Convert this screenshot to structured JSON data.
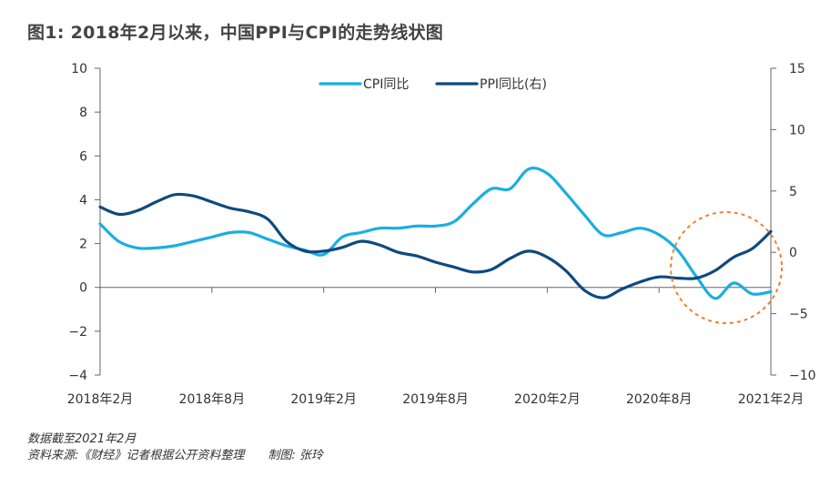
{
  "title": "图1: 2018年2月以来，中国PPI与CPI的走势线状图",
  "footnotes": {
    "line1": "数据截至2021年2月",
    "line2": "资料来源:《财经》记者根据公开资料整理　　制图: 张玲"
  },
  "chart_data": {
    "type": "line",
    "title": "图1: 2018年2月以来，中国PPI与CPI的走势线状图",
    "x": [
      "2018-02",
      "2018-03",
      "2018-04",
      "2018-05",
      "2018-06",
      "2018-07",
      "2018-08",
      "2018-09",
      "2018-10",
      "2018-11",
      "2018-12",
      "2019-01",
      "2019-02",
      "2019-03",
      "2019-04",
      "2019-05",
      "2019-06",
      "2019-07",
      "2019-08",
      "2019-09",
      "2019-10",
      "2019-11",
      "2019-12",
      "2020-01",
      "2020-02",
      "2020-03",
      "2020-04",
      "2020-05",
      "2020-06",
      "2020-07",
      "2020-08",
      "2020-09",
      "2020-10",
      "2020-11",
      "2020-12",
      "2021-01",
      "2021-02"
    ],
    "x_tick_labels": [
      "2018年2月",
      "2018年8月",
      "2019年2月",
      "2019年8月",
      "2020年2月",
      "2020年8月",
      "2021年2月"
    ],
    "y_left": {
      "label": "",
      "lim": [
        -4,
        10
      ],
      "ticks": [
        "10",
        "8",
        "6",
        "4",
        "2",
        "0",
        "−2",
        "−4"
      ]
    },
    "y_right": {
      "label": "",
      "lim": [
        -10,
        15
      ],
      "ticks": [
        "15",
        "10",
        "5",
        "0",
        "−5",
        "−10"
      ]
    },
    "series": [
      {
        "name": "CPI同比",
        "axis": "left",
        "color": "#1BAEE0",
        "values": [
          2.9,
          2.1,
          1.8,
          1.8,
          1.9,
          2.1,
          2.3,
          2.5,
          2.5,
          2.2,
          1.9,
          1.7,
          1.5,
          2.3,
          2.5,
          2.7,
          2.7,
          2.8,
          2.8,
          3.0,
          3.8,
          4.5,
          4.5,
          5.4,
          5.2,
          4.3,
          3.3,
          2.4,
          2.5,
          2.7,
          2.4,
          1.7,
          0.5,
          -0.5,
          0.2,
          -0.3,
          -0.2
        ]
      },
      {
        "name": "PPI同比(右)",
        "axis": "right",
        "color": "#0E4A7E",
        "values": [
          3.7,
          3.1,
          3.4,
          4.1,
          4.7,
          4.6,
          4.1,
          3.6,
          3.3,
          2.7,
          0.9,
          0.1,
          0.1,
          0.4,
          0.9,
          0.6,
          0.0,
          -0.3,
          -0.8,
          -1.2,
          -1.6,
          -1.4,
          -0.5,
          0.1,
          -0.4,
          -1.5,
          -3.1,
          -3.7,
          -3.0,
          -2.4,
          -2.0,
          -2.1,
          -2.1,
          -1.5,
          -0.4,
          0.3,
          1.7
        ]
      }
    ],
    "legend": {
      "position": "top-center",
      "entries": [
        "CPI同比",
        "PPI同比(右)"
      ]
    },
    "annotations": [
      {
        "type": "dashed-circle",
        "color": "#F07F2B",
        "around": "2020-11 to 2021-02"
      }
    ],
    "grid": false
  }
}
